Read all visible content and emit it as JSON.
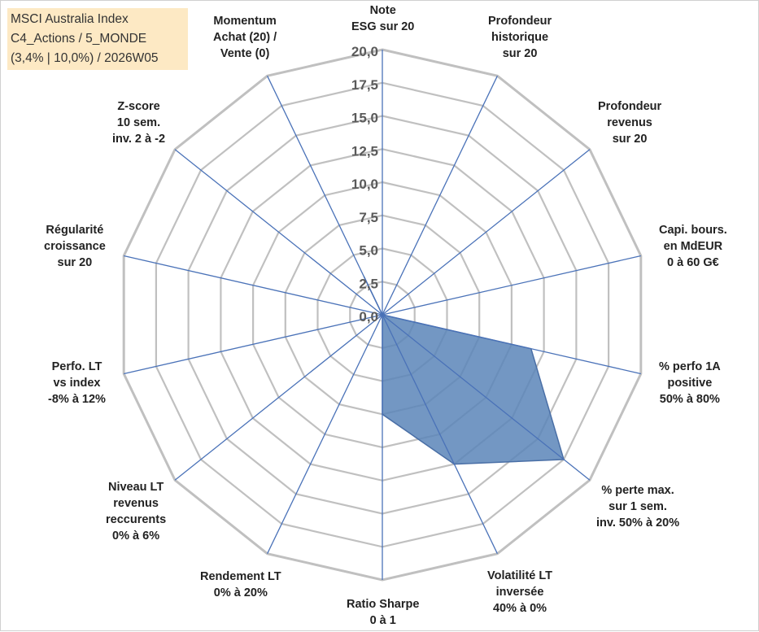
{
  "info_box": {
    "line1": "MSCI Australia Index",
    "line2": "C4_Actions / 5_MONDE",
    "line3": "(3,4% | 10,0%) / 2026W05"
  },
  "colors": {
    "grid": "#c0c0c0",
    "spokes": "#4a72b8",
    "fill": "#5b85b8",
    "stroke": "#4a6fa6",
    "info_box_bg": "#fde9c4"
  },
  "chart_data": {
    "type": "radar",
    "title": "",
    "r_range": [
      0,
      20
    ],
    "r_ticks": [
      "0,0",
      "2,5",
      "5,0",
      "7,5",
      "10,0",
      "12,5",
      "15,0",
      "17,5",
      "20,0"
    ],
    "axes": [
      {
        "id": "esg",
        "lines": [
          "Note",
          "ESG sur 20"
        ]
      },
      {
        "id": "prof-hist",
        "lines": [
          "Profondeur",
          "historique",
          "sur 20"
        ]
      },
      {
        "id": "prof-rev",
        "lines": [
          "Profondeur",
          "revenus",
          "sur 20"
        ]
      },
      {
        "id": "capi",
        "lines": [
          "Capi. bours.",
          "en MdEUR",
          "0 à 60 G€"
        ]
      },
      {
        "id": "perfo-1a",
        "lines": [
          "% perfo 1A",
          "positive",
          "50% à 80%"
        ]
      },
      {
        "id": "perte-max",
        "lines": [
          "% perte max.",
          "sur 1 sem.",
          "inv. 50% à 20%"
        ]
      },
      {
        "id": "volat",
        "lines": [
          "Volatilité LT",
          "inversée",
          "40% à 0%"
        ]
      },
      {
        "id": "sharpe",
        "lines": [
          "Ratio Sharpe",
          "0 à 1"
        ]
      },
      {
        "id": "rendement",
        "lines": [
          "Rendement LT",
          "0% à 20%"
        ]
      },
      {
        "id": "niveau-rev",
        "lines": [
          "Niveau LT",
          "revenus",
          "reccurents",
          "0% à 6%"
        ]
      },
      {
        "id": "perfo-lt",
        "lines": [
          "Perfo. LT",
          "vs index",
          "-8% à 12%"
        ]
      },
      {
        "id": "regularite",
        "lines": [
          "Régularité",
          "croissance",
          "sur 20"
        ]
      },
      {
        "id": "zscore",
        "lines": [
          "Z-score",
          "10 sem.",
          "inv. 2 à -2"
        ]
      },
      {
        "id": "momentum",
        "lines": [
          "Momentum",
          "Achat (20) /",
          "Vente (0)"
        ]
      }
    ],
    "series": [
      {
        "values": [
          0,
          0,
          0,
          0,
          11.5,
          17.5,
          12.5,
          7.5,
          0,
          0,
          0,
          0,
          0,
          3.2
        ]
      }
    ],
    "grid": true,
    "legend": "none"
  }
}
